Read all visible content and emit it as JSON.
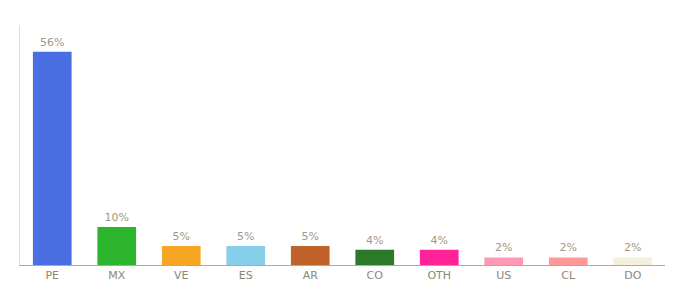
{
  "chart_data": {
    "type": "bar",
    "categories": [
      "PE",
      "MX",
      "VE",
      "ES",
      "AR",
      "CO",
      "OTH",
      "US",
      "CL",
      "DO"
    ],
    "values": [
      56,
      10,
      5,
      5,
      5,
      4,
      4,
      2,
      2,
      2
    ],
    "value_labels": [
      "56%",
      "10%",
      "5%",
      "5%",
      "5%",
      "4%",
      "4%",
      "2%",
      "2%",
      "2%"
    ],
    "colors": [
      "#4a6fe3",
      "#2db52d",
      "#f5a623",
      "#87ceeb",
      "#c0622a",
      "#2a7a2a",
      "#ff2299",
      "#ff99b3",
      "#ff9999",
      "#f5f0dc"
    ],
    "ylim": [
      0,
      63
    ],
    "data_labels": true,
    "grid": false,
    "tick_labels": "x"
  }
}
